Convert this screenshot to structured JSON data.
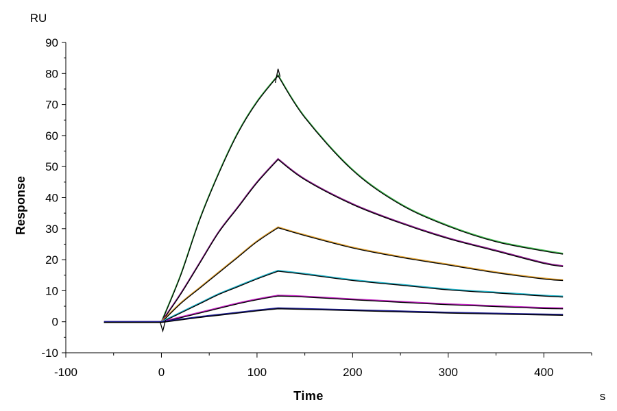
{
  "chart_data": {
    "type": "line",
    "title": "",
    "xlabel": "Time",
    "ylabel": "Response",
    "x_unit": "s",
    "y_unit": "RU",
    "xlim": [
      -100,
      450
    ],
    "ylim": [
      -10,
      90
    ],
    "x_ticks": [
      -100,
      0,
      100,
      200,
      300,
      400
    ],
    "y_ticks": [
      -10,
      0,
      10,
      20,
      30,
      40,
      50,
      60,
      70,
      80,
      90
    ],
    "x_tick_labels": [
      "-100",
      "0",
      "100",
      "200",
      "300",
      "400"
    ],
    "y_tick_labels": [
      "-10",
      "0",
      "10",
      "20",
      "30",
      "40",
      "50",
      "60",
      "70",
      "80",
      "90"
    ],
    "grid": false,
    "legend": "none",
    "association_start": 0,
    "dissociation_start": 122,
    "end_time": 420,
    "series": [
      {
        "color": "#3cb44b",
        "fit_color": "#000000",
        "x": [
          -60,
          0,
          20,
          40,
          60,
          80,
          100,
          122,
          150,
          200,
          250,
          300,
          350,
          400,
          420
        ],
        "values": [
          0,
          0,
          15,
          33,
          48,
          61,
          71,
          79.5,
          66,
          49,
          38,
          31,
          26,
          23,
          22
        ]
      },
      {
        "color": "#8b1a8b",
        "fit_color": "#000000",
        "x": [
          -60,
          0,
          20,
          40,
          60,
          80,
          100,
          122,
          150,
          200,
          250,
          300,
          350,
          400,
          420
        ],
        "values": [
          0,
          0,
          9,
          19,
          29,
          37,
          45,
          52.5,
          46,
          38,
          32,
          27,
          23,
          19,
          18
        ]
      },
      {
        "color": "#e0a030",
        "fit_color": "#000000",
        "x": [
          -60,
          0,
          20,
          40,
          60,
          80,
          100,
          122,
          150,
          200,
          250,
          300,
          350,
          400,
          420
        ],
        "values": [
          0,
          0,
          6,
          11,
          16,
          21,
          26,
          30.5,
          28,
          24,
          21,
          18.5,
          16,
          14,
          13.5
        ]
      },
      {
        "color": "#20b2c8",
        "fit_color": "#000000",
        "x": [
          -60,
          0,
          20,
          40,
          60,
          80,
          100,
          122,
          150,
          200,
          250,
          300,
          350,
          400,
          420
        ],
        "values": [
          0,
          0,
          3,
          6,
          9,
          11.5,
          14,
          16.5,
          15.5,
          13.5,
          12,
          10.5,
          9.5,
          8.5,
          8.2
        ]
      },
      {
        "color": "#c020c0",
        "fit_color": "#000000",
        "x": [
          -60,
          0,
          20,
          40,
          60,
          80,
          100,
          122,
          150,
          200,
          250,
          300,
          350,
          400,
          420
        ],
        "values": [
          0,
          0,
          1.5,
          3,
          4.5,
          6,
          7.3,
          8.5,
          8.2,
          7.3,
          6.5,
          5.7,
          5.1,
          4.5,
          4.4
        ]
      },
      {
        "color": "#1a1a8c",
        "fit_color": "#000000",
        "x": [
          -60,
          0,
          20,
          40,
          60,
          80,
          100,
          122,
          150,
          200,
          250,
          300,
          350,
          400,
          420
        ],
        "values": [
          0,
          0,
          0.8,
          1.6,
          2.3,
          3,
          3.7,
          4.4,
          4.2,
          3.8,
          3.4,
          3,
          2.7,
          2.4,
          2.3
        ]
      }
    ]
  }
}
